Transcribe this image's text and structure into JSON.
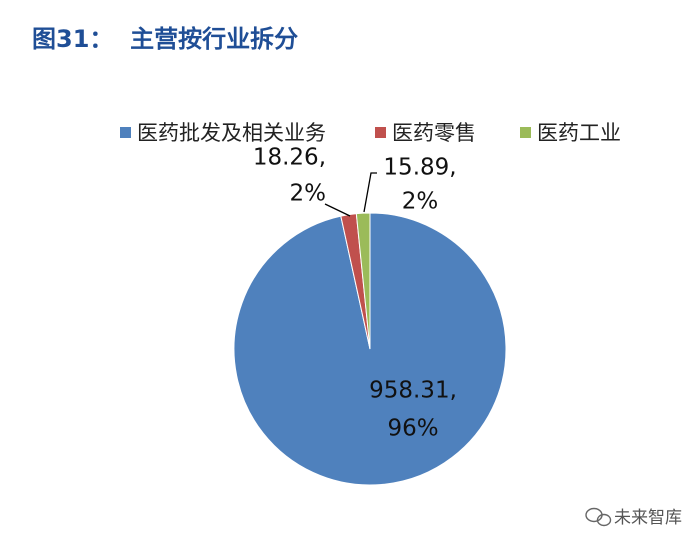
{
  "chart_data": {
    "type": "pie",
    "title": "图31：  主营按行业拆分",
    "categories": [
      "医药批发及相关业务",
      "医药零售",
      "医药工业"
    ],
    "values": [
      958.31,
      18.26,
      15.89
    ],
    "value_labels": [
      [
        "958.31,",
        "96%"
      ],
      [
        "18.26,",
        "2%"
      ],
      [
        "15.89,",
        "2%"
      ]
    ],
    "colors": [
      "#4f81bd",
      "#c0504d",
      "#9bbb59"
    ],
    "legend": "top"
  },
  "watermark": "未来智库"
}
